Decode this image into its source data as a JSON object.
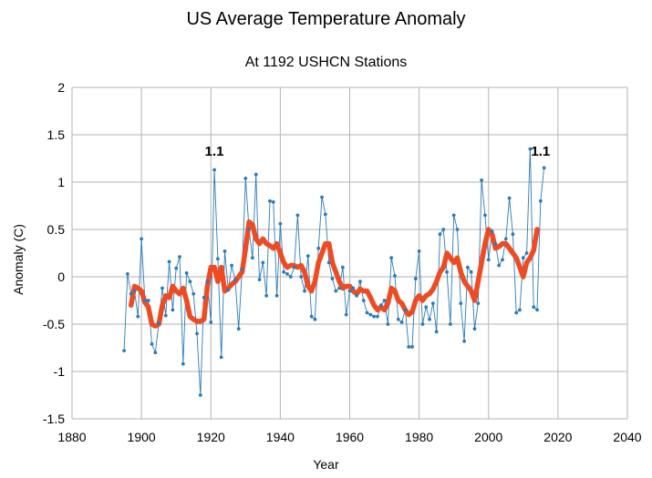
{
  "chart_data": {
    "type": "line",
    "title": "US Average Temperature Anomaly",
    "subtitle": "At 1192 USHCN Stations",
    "xlabel": "Year",
    "ylabel": "Anomaly (C)",
    "xlim": [
      1880,
      2040
    ],
    "ylim": [
      -1.5,
      2
    ],
    "xticks": [
      "1880",
      "1900",
      "1920",
      "1940",
      "1960",
      "1980",
      "2000",
      "2020",
      "2040"
    ],
    "yticks": [
      "-1.5",
      "-1",
      "-0.5",
      "0",
      "0.5",
      "1",
      "1.5",
      "2"
    ],
    "grid": true,
    "series": [
      {
        "role": "annual",
        "color": "#2b7bb9",
        "x": [
          1895,
          1896,
          1897,
          1898,
          1899,
          1900,
          1901,
          1902,
          1903,
          1904,
          1905,
          1906,
          1907,
          1908,
          1909,
          1910,
          1911,
          1912,
          1913,
          1914,
          1915,
          1916,
          1917,
          1918,
          1919,
          1920,
          1921,
          1922,
          1923,
          1924,
          1925,
          1926,
          1927,
          1928,
          1929,
          1930,
          1931,
          1932,
          1933,
          1934,
          1935,
          1936,
          1937,
          1938,
          1939,
          1940,
          1941,
          1942,
          1943,
          1944,
          1945,
          1946,
          1947,
          1948,
          1949,
          1950,
          1951,
          1952,
          1953,
          1954,
          1955,
          1956,
          1957,
          1958,
          1959,
          1960,
          1961,
          1962,
          1963,
          1964,
          1965,
          1966,
          1967,
          1968,
          1969,
          1970,
          1971,
          1972,
          1973,
          1974,
          1975,
          1976,
          1977,
          1978,
          1979,
          1980,
          1981,
          1982,
          1983,
          1984,
          1985,
          1986,
          1987,
          1988,
          1989,
          1990,
          1991,
          1992,
          1993,
          1994,
          1995,
          1996,
          1997,
          1998,
          1999,
          2000,
          2001,
          2002,
          2003,
          2004,
          2005,
          2006,
          2007,
          2008,
          2009,
          2010,
          2011,
          2012,
          2013,
          2014,
          2015,
          2016
        ],
        "y": [
          -0.78,
          0.03,
          -0.18,
          -0.15,
          -0.42,
          0.4,
          -0.25,
          -0.25,
          -0.71,
          -0.8,
          -0.49,
          -0.12,
          -0.41,
          0.16,
          -0.35,
          0.09,
          0.21,
          -0.92,
          0.04,
          -0.05,
          -0.18,
          -0.6,
          -1.25,
          -0.22,
          -0.05,
          -0.48,
          1.13,
          0.19,
          -0.85,
          0.27,
          -0.14,
          0.12,
          -0.03,
          -0.55,
          0.08,
          1.04,
          0.5,
          0.2,
          1.08,
          -0.03,
          0.15,
          -0.2,
          0.8,
          0.79,
          -0.2,
          0.56,
          0.05,
          0.03,
          0.0,
          0.1,
          0.65,
          0.0,
          -0.15,
          0.22,
          -0.42,
          -0.45,
          0.3,
          0.84,
          0.66,
          0.15,
          -0.02,
          -0.15,
          -0.12,
          0.1,
          -0.4,
          -0.15,
          -0.12,
          -0.2,
          -0.05,
          -0.25,
          -0.38,
          -0.4,
          -0.42,
          -0.42,
          -0.3,
          -0.25,
          -0.5,
          0.2,
          0.01,
          -0.45,
          -0.48,
          -0.35,
          -0.74,
          -0.74,
          -0.02,
          0.27,
          -0.5,
          -0.32,
          -0.45,
          -0.28,
          -0.58,
          0.45,
          0.5,
          0.05,
          -0.5,
          0.65,
          0.5,
          -0.28,
          -0.68,
          0.1,
          0.05,
          -0.55,
          -0.28,
          1.02,
          0.65,
          0.18,
          0.48,
          0.35,
          0.12,
          0.18,
          0.4,
          0.83,
          0.45,
          -0.38,
          -0.35,
          0.2,
          0.25,
          1.35,
          -0.32,
          -0.35,
          0.8,
          1.15
        ]
      },
      {
        "role": "smoothed",
        "color": "#ee4b22",
        "x": [
          1897,
          1898,
          1899,
          1900,
          1901,
          1902,
          1903,
          1904,
          1905,
          1906,
          1907,
          1908,
          1909,
          1910,
          1911,
          1912,
          1913,
          1914,
          1915,
          1916,
          1917,
          1918,
          1919,
          1920,
          1921,
          1922,
          1923,
          1924,
          1925,
          1926,
          1927,
          1928,
          1929,
          1930,
          1931,
          1932,
          1933,
          1934,
          1935,
          1936,
          1937,
          1938,
          1939,
          1940,
          1941,
          1942,
          1943,
          1944,
          1945,
          1946,
          1947,
          1948,
          1949,
          1950,
          1951,
          1952,
          1953,
          1954,
          1955,
          1956,
          1957,
          1958,
          1959,
          1960,
          1961,
          1962,
          1963,
          1964,
          1965,
          1966,
          1967,
          1968,
          1969,
          1970,
          1971,
          1972,
          1973,
          1974,
          1975,
          1976,
          1977,
          1978,
          1979,
          1980,
          1981,
          1982,
          1983,
          1984,
          1985,
          1986,
          1987,
          1988,
          1989,
          1990,
          1991,
          1992,
          1993,
          1994,
          1995,
          1996,
          1997,
          1998,
          1999,
          2000,
          2001,
          2002,
          2003,
          2004,
          2005,
          2006,
          2007,
          2008,
          2009,
          2010,
          2011,
          2012,
          2013,
          2014
        ],
        "y": [
          -0.3,
          -0.1,
          -0.12,
          -0.15,
          -0.27,
          -0.32,
          -0.5,
          -0.52,
          -0.5,
          -0.3,
          -0.2,
          -0.22,
          -0.1,
          -0.15,
          -0.18,
          -0.12,
          -0.25,
          -0.42,
          -0.45,
          -0.47,
          -0.47,
          -0.45,
          -0.1,
          0.1,
          0.1,
          -0.05,
          0.1,
          -0.15,
          -0.12,
          -0.08,
          -0.05,
          0.0,
          0.05,
          0.3,
          0.58,
          0.55,
          0.4,
          0.35,
          0.4,
          0.35,
          0.33,
          0.3,
          0.35,
          0.25,
          0.15,
          0.1,
          0.12,
          0.12,
          0.1,
          0.12,
          0.05,
          -0.1,
          -0.15,
          -0.05,
          0.15,
          0.25,
          0.35,
          0.35,
          0.15,
          0.05,
          -0.05,
          -0.12,
          -0.1,
          -0.1,
          -0.15,
          -0.18,
          -0.13,
          -0.15,
          -0.15,
          -0.22,
          -0.3,
          -0.35,
          -0.32,
          -0.35,
          -0.28,
          -0.12,
          -0.15,
          -0.25,
          -0.28,
          -0.35,
          -0.4,
          -0.37,
          -0.25,
          -0.2,
          -0.25,
          -0.2,
          -0.18,
          -0.13,
          -0.05,
          0.05,
          0.1,
          0.25,
          0.2,
          0.15,
          0.2,
          0.05,
          -0.05,
          -0.1,
          -0.15,
          -0.25,
          -0.05,
          0.15,
          0.35,
          0.5,
          0.45,
          0.3,
          0.32,
          0.35,
          0.35,
          0.3,
          0.25,
          0.2,
          0.1,
          0.0,
          0.15,
          0.2,
          0.28,
          0.5
        ]
      }
    ],
    "annotations": [
      {
        "text": "1.1",
        "x": 1921,
        "y": 1.28
      },
      {
        "text": "1.1",
        "x": 2015,
        "y": 1.28
      }
    ]
  }
}
